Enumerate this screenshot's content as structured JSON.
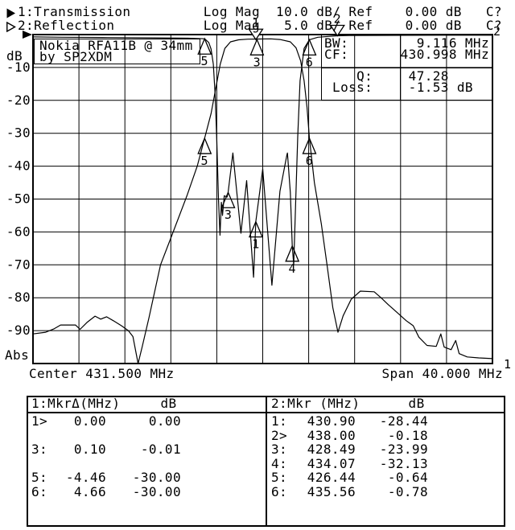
{
  "colors": {
    "foreground": "#000000",
    "background": "#ffffff"
  },
  "header": {
    "line1": "1:Transmission         Log Mag  10.0 dB/ Ref    0.00 dB   C?",
    "line2": "2:Reflection           Log Mag   5.0 dB/ Ref    0.00 dB   C?"
  },
  "info_box": {
    "rows": [
      {
        "label": "BW:",
        "value": "9.116 MHz"
      },
      {
        "label": "CF:",
        "value": "430.998 MHz"
      },
      {
        "label": "    Q:",
        "value": "47.28     "
      },
      {
        "label": " Loss:",
        "value": "-1.53 dB  "
      }
    ]
  },
  "marker_tables": {
    "left": {
      "header": "1:MkrΔ(MHz)     dB",
      "rows": [
        [
          "1>",
          "0.00",
          "0.00"
        ],
        [
          "",
          "",
          ""
        ],
        [
          "3:",
          "0.10",
          "-0.01"
        ],
        [
          "",
          "",
          ""
        ],
        [
          "5:",
          "-4.46",
          "-30.00"
        ],
        [
          "6:",
          "4.66",
          "-30.00"
        ]
      ]
    },
    "right": {
      "header": "2:Mkr (MHz)      dB",
      "rows": [
        [
          "1:",
          "430.90",
          "-28.44"
        ],
        [
          "2>",
          "438.00",
          "-0.18"
        ],
        [
          "3:",
          "428.49",
          "-23.99"
        ],
        [
          "4:",
          "434.07",
          "-32.13"
        ],
        [
          "5:",
          "426.44",
          "-0.64"
        ],
        [
          "6:",
          "435.56",
          "-0.78"
        ]
      ]
    }
  },
  "chart_data": {
    "type": "line",
    "title": "Nokia RFA11B @ 34mm",
    "subtitle": "by SP2XDM",
    "x_axis": {
      "center_label": "Center 431.500 MHz",
      "span_label": "Span 40.000 MHz",
      "center_mhz": 431.5,
      "span_mhz": 40.0,
      "min_mhz": 411.5,
      "max_mhz": 451.5,
      "divisions": 10
    },
    "y_axis": {
      "unit_label": "dB",
      "bottom_label": "Abs",
      "tick_labels": [
        "-10",
        "-20",
        "-30",
        "-40",
        "-50",
        "-60",
        "-70",
        "-80",
        "-90"
      ],
      "ref_db": 0,
      "divisions": 10,
      "trace1_db_per_div": 10,
      "trace2_db_per_div": 5
    },
    "trace_end_labels": [
      {
        "text": "2",
        "x": 613,
        "y": 44
      },
      {
        "text": "1",
        "x": 626,
        "y": 458
      }
    ],
    "series": [
      {
        "name": "1:Transmission",
        "scale": 1,
        "points": [
          [
            411.5,
            -91
          ],
          [
            412.6,
            -90.5
          ],
          [
            413.3,
            -89.5
          ],
          [
            413.9,
            -88.3
          ],
          [
            415.2,
            -88.3
          ],
          [
            415.6,
            -89.6
          ],
          [
            416.2,
            -87.5
          ],
          [
            416.9,
            -85.6
          ],
          [
            417.4,
            -86.5
          ],
          [
            417.9,
            -85.8
          ],
          [
            418.5,
            -87
          ],
          [
            419.2,
            -88.5
          ],
          [
            419.8,
            -90
          ],
          [
            420.2,
            -91.8
          ],
          [
            420.65,
            -100
          ],
          [
            421.0,
            -95
          ],
          [
            421.6,
            -86
          ],
          [
            422.6,
            -70
          ],
          [
            423.7,
            -60
          ],
          [
            424.9,
            -49
          ],
          [
            425.8,
            -40
          ],
          [
            426.44,
            -31.5
          ],
          [
            427.0,
            -24
          ],
          [
            427.4,
            -16.5
          ],
          [
            427.8,
            -9
          ],
          [
            428.2,
            -4.2
          ],
          [
            428.7,
            -2.2
          ],
          [
            429.4,
            -1.6
          ],
          [
            430.2,
            -1.4
          ],
          [
            431.2,
            -1.35
          ],
          [
            432.2,
            -1.3
          ],
          [
            433.0,
            -1.5
          ],
          [
            433.9,
            -2.2
          ],
          [
            434.4,
            -4
          ],
          [
            434.8,
            -8
          ],
          [
            435.1,
            -14
          ],
          [
            435.35,
            -22
          ],
          [
            435.56,
            -31.5
          ],
          [
            436.0,
            -45
          ],
          [
            436.6,
            -57.5
          ],
          [
            437.1,
            -70
          ],
          [
            437.6,
            -83
          ],
          [
            438.05,
            -90.5
          ],
          [
            438.5,
            -85.5
          ],
          [
            439.2,
            -80.5
          ],
          [
            440.0,
            -78
          ],
          [
            441.2,
            -78.2
          ],
          [
            441.8,
            -80
          ],
          [
            442.4,
            -82
          ],
          [
            443.2,
            -84.5
          ],
          [
            444.0,
            -87
          ],
          [
            444.6,
            -88.5
          ],
          [
            445.1,
            -92
          ],
          [
            445.8,
            -94.5
          ],
          [
            446.6,
            -94.8
          ],
          [
            447.0,
            -91
          ],
          [
            447.3,
            -95
          ],
          [
            447.9,
            -95.8
          ],
          [
            448.3,
            -93
          ],
          [
            448.6,
            -97
          ],
          [
            449.3,
            -98
          ],
          [
            450.3,
            -98.3
          ],
          [
            451.5,
            -98.5
          ]
        ]
      },
      {
        "name": "2:Reflection",
        "scale": 2,
        "points": [
          [
            411.5,
            -0.35
          ],
          [
            414.0,
            -0.4
          ],
          [
            418.0,
            -0.45
          ],
          [
            422.0,
            -0.5
          ],
          [
            425.0,
            -0.55
          ],
          [
            426.44,
            -0.64
          ],
          [
            426.8,
            -1.2
          ],
          [
            427.0,
            -2.2
          ],
          [
            427.2,
            -4.5
          ],
          [
            427.35,
            -9
          ],
          [
            427.5,
            -16
          ],
          [
            427.65,
            -25
          ],
          [
            427.78,
            -30.5
          ],
          [
            427.9,
            -25.5
          ],
          [
            428.0,
            -27.5
          ],
          [
            428.15,
            -24.5
          ],
          [
            428.4,
            -24.7
          ],
          [
            428.49,
            -23.99
          ],
          [
            428.9,
            -18
          ],
          [
            429.6,
            -30.2
          ],
          [
            430.1,
            -22.2
          ],
          [
            430.7,
            -36.9
          ],
          [
            430.9,
            -28.44
          ],
          [
            431.5,
            -20.4
          ],
          [
            432.3,
            -38.1
          ],
          [
            433.0,
            -23.8
          ],
          [
            433.6,
            -18.3
          ],
          [
            433.65,
            -18
          ],
          [
            433.9,
            -24
          ],
          [
            434.07,
            -32.13
          ],
          [
            434.2,
            -35
          ],
          [
            434.55,
            -15.5
          ],
          [
            434.75,
            -7
          ],
          [
            435.1,
            -2.1
          ],
          [
            435.56,
            -0.78
          ],
          [
            436.3,
            -0.4
          ],
          [
            437.2,
            -0.28
          ],
          [
            438.0,
            -0.18
          ],
          [
            439.0,
            -0.15
          ],
          [
            442.0,
            -0.12
          ],
          [
            447.0,
            -0.1
          ],
          [
            451.5,
            -0.1
          ]
        ]
      }
    ],
    "markers": [
      {
        "trace": 1,
        "n": "1",
        "f": 430.9,
        "db": -1.53,
        "shape": "down"
      },
      {
        "trace": 1,
        "n": "3",
        "f": 431.0,
        "db": -1.54,
        "shape": "up"
      },
      {
        "trace": 1,
        "n": "5",
        "f": 426.44,
        "db": -31.53,
        "shape": "up"
      },
      {
        "trace": 1,
        "n": "6",
        "f": 435.56,
        "db": -31.53,
        "shape": "up"
      },
      {
        "trace": 2,
        "n": "1",
        "f": 430.9,
        "db": -28.44,
        "shape": "up"
      },
      {
        "trace": 2,
        "n": "2",
        "f": 438.0,
        "db": -0.18,
        "shape": "down"
      },
      {
        "trace": 2,
        "n": "3",
        "f": 428.49,
        "db": -23.99,
        "shape": "up"
      },
      {
        "trace": 2,
        "n": "4",
        "f": 434.07,
        "db": -32.13,
        "shape": "up"
      },
      {
        "trace": 2,
        "n": "5",
        "f": 426.44,
        "db": -0.64,
        "shape": "up"
      },
      {
        "trace": 2,
        "n": "6",
        "f": 435.56,
        "db": -0.78,
        "shape": "up"
      }
    ],
    "legend_position": "none",
    "grid": true
  }
}
